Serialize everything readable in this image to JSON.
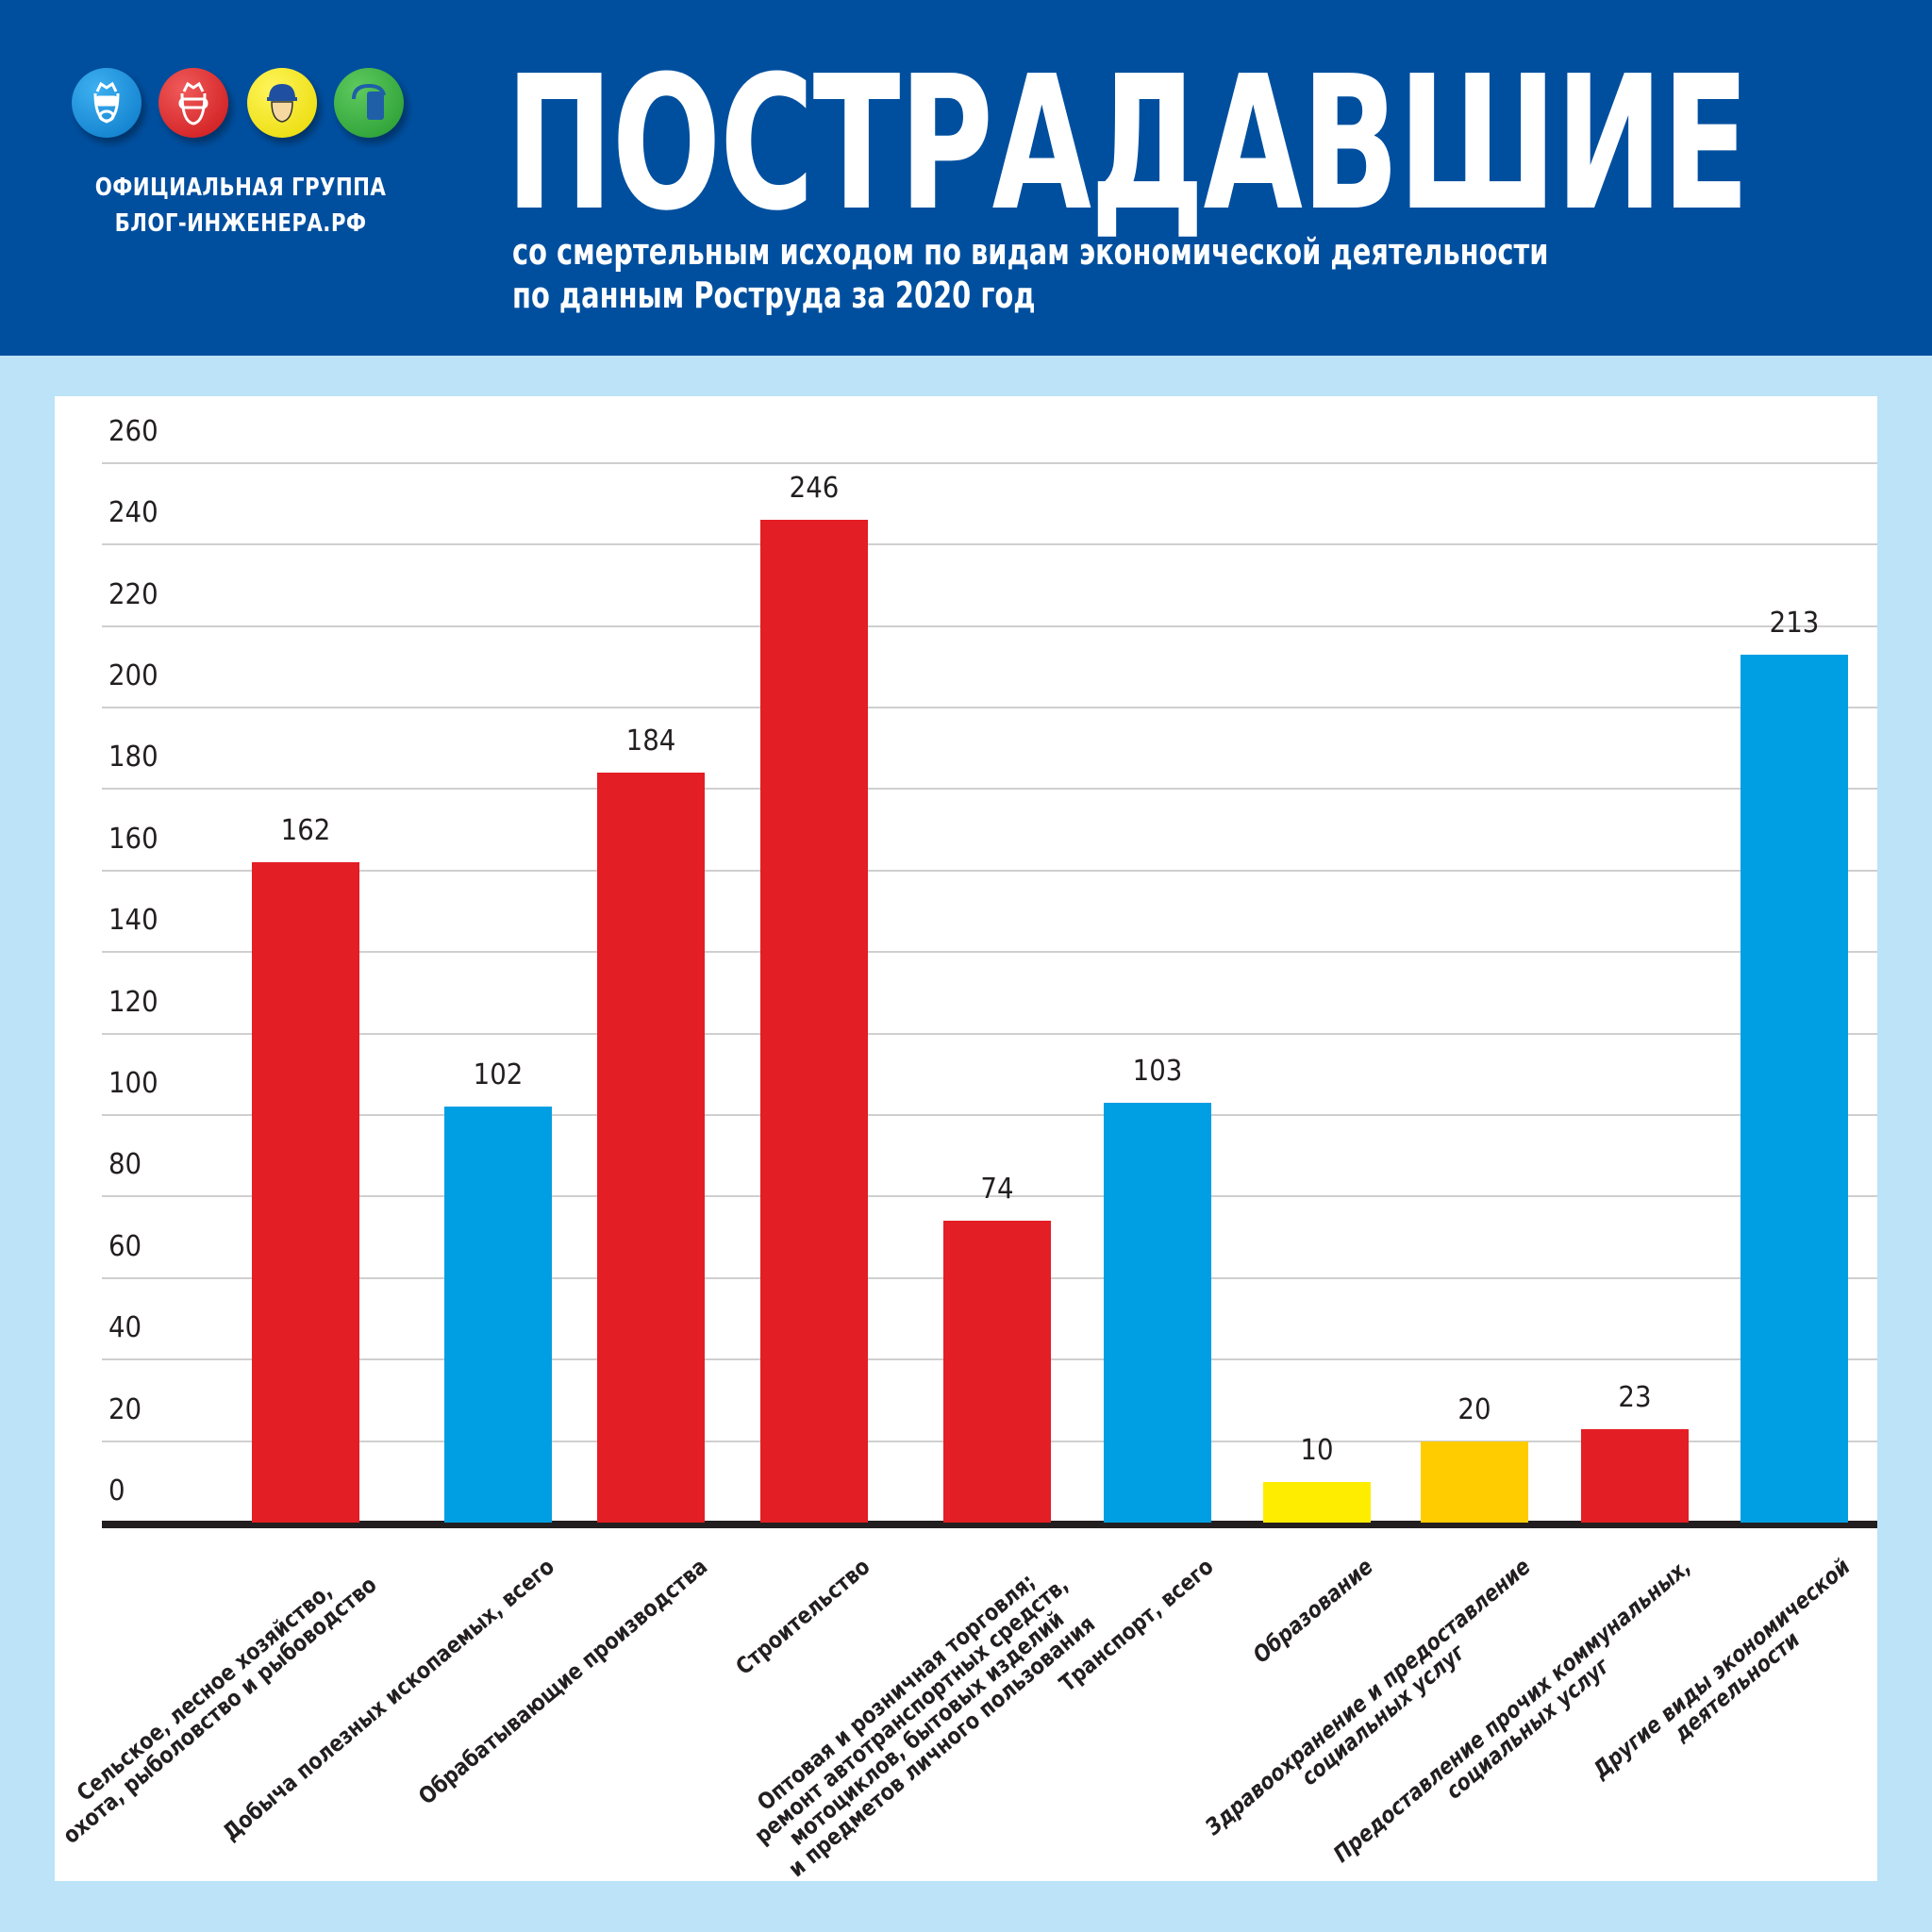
{
  "header": {
    "logo_icons": [
      {
        "name": "respirator-goggles-icon",
        "color": "#1a8fd8"
      },
      {
        "name": "safety-goggles-icon",
        "color": "#e3242b"
      },
      {
        "name": "hard-hat-icon",
        "color": "#f4e500"
      },
      {
        "name": "face-shield-icon",
        "color": "#3aa53a"
      }
    ],
    "org_line1": "ОФИЦИАЛЬНАЯ ГРУППА",
    "org_line2": "БЛОГ-ИНЖЕНЕРА.РФ",
    "title": "ПОСТРАДАВШИЕ",
    "subtitle_line1": "со смертельным исходом по видам экономической деятельности",
    "subtitle_line2": "по данным Роструда за 2020 год"
  },
  "colors": {
    "header_bg": "#004f9f",
    "page_bg": "#bce3f7",
    "red": "#e31e24",
    "blue": "#009fe3",
    "yellow": "#ffed00",
    "amber": "#ffcc00"
  },
  "chart_data": {
    "type": "bar",
    "title": "ПОСТРАДАВШИЕ со смертельным исходом по видам экономической деятельности по данным Роструда за 2020 год",
    "xlabel": "",
    "ylabel": "",
    "ylim": [
      0,
      260
    ],
    "yticks": [
      0,
      20,
      40,
      60,
      80,
      100,
      120,
      140,
      160,
      180,
      200,
      220,
      240,
      260
    ],
    "grid": true,
    "legend": null,
    "categories": [
      "Сельское, лесное хозяйство,\nохота, рыболовство и рыбоводство",
      "Добыча полезных ископаемых, всего",
      "Обрабатывающие производства",
      "Строительство",
      "Оптовая и розничная торговля;\nремонт автотранспортных средств,\nмотоциклов, бытовых изделий\nи предметов личного пользования",
      "Транспорт, всего",
      "Образование",
      "Здравоохранение и предоставление\nсоциальных услуг",
      "Предоставление прочих коммунальных,\nсоциальных услуг",
      "Другие виды экономической\nдеятельности"
    ],
    "values": [
      162,
      102,
      184,
      246,
      74,
      103,
      10,
      20,
      23,
      213
    ],
    "bar_colors": [
      "#e31e24",
      "#009fe3",
      "#e31e24",
      "#e31e24",
      "#e31e24",
      "#009fe3",
      "#ffed00",
      "#ffcc00",
      "#e31e24",
      "#009fe3"
    ]
  }
}
